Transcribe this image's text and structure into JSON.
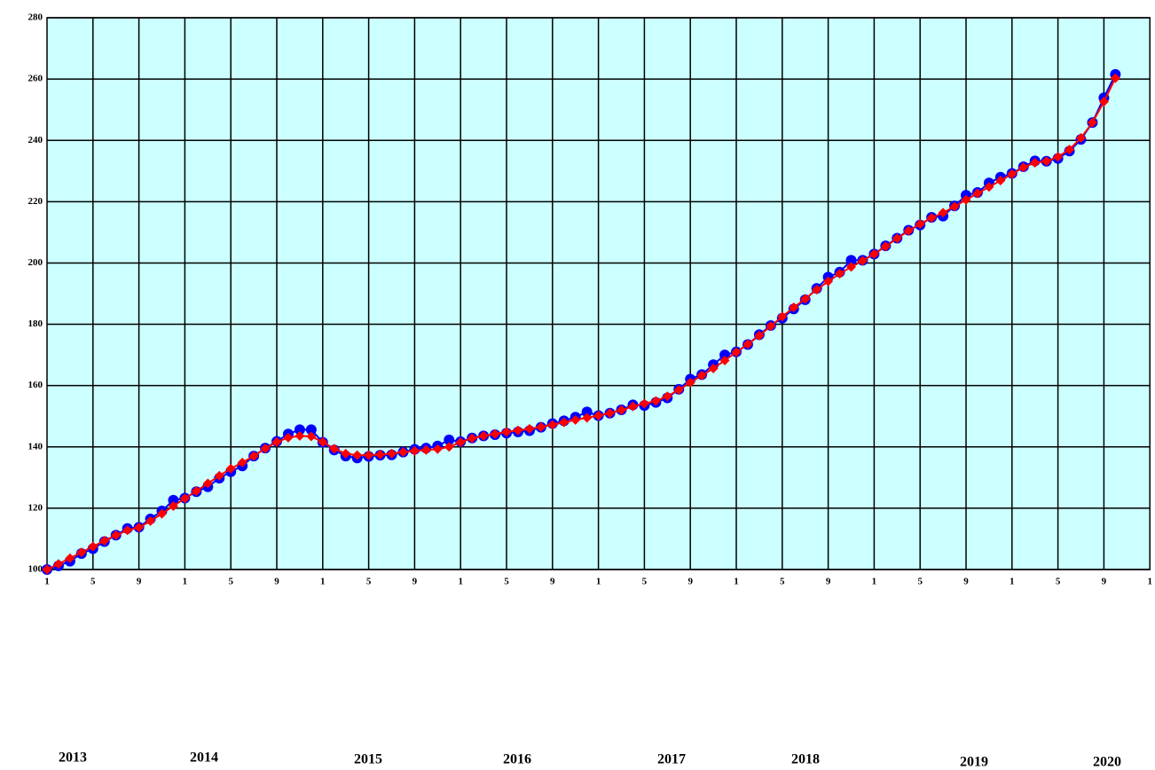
{
  "chart_data": {
    "type": "line",
    "categories": [
      "1",
      null,
      null,
      null,
      "5",
      null,
      null,
      null,
      "9",
      null,
      null,
      null,
      "1",
      null,
      null,
      null,
      "5",
      null,
      null,
      null,
      "9",
      null,
      null,
      null,
      "1",
      null,
      null,
      null,
      "5",
      null,
      null,
      null,
      "9",
      null,
      null,
      null,
      "1",
      null,
      null,
      null,
      "5",
      null,
      null,
      null,
      "9",
      null,
      null,
      null,
      "1",
      null,
      null,
      null,
      "5",
      null,
      null,
      null,
      "9",
      null,
      null,
      null,
      "1",
      null,
      null,
      null,
      "5",
      null,
      null,
      null,
      "9",
      null,
      null,
      null,
      "1",
      null,
      null,
      null,
      "5",
      null,
      null,
      null,
      "9",
      null,
      null,
      null,
      "1",
      null,
      null,
      null,
      "5",
      null,
      null,
      null,
      "9",
      null,
      null,
      null,
      "1"
    ],
    "series": [
      {
        "color": "#0000ff",
        "marker": "circle",
        "values": [
          100,
          101.2,
          102.7,
          105.2,
          106.8,
          109.1,
          111.2,
          113.4,
          113.8,
          116.5,
          119.1,
          122.6,
          123.3,
          125.4,
          127,
          129.8,
          131.9,
          133.8,
          137,
          139.6,
          141.8,
          144.2,
          145.6,
          145.6,
          141.5,
          139,
          137,
          136.4,
          136.9,
          137.3,
          137.4,
          138.3,
          139.2,
          139.6,
          140.3,
          142.3,
          141.7,
          142.9,
          143.6,
          144,
          144.5,
          144.9,
          145.3,
          146.4,
          147.6,
          148.5,
          149.7,
          151.4,
          150.2,
          151,
          152.1,
          153.7,
          153.5,
          154.5,
          156,
          158.8,
          162.1,
          163.6,
          166.8,
          170,
          171,
          173.4,
          176.6,
          179.6,
          182,
          185,
          188,
          191.7,
          195.4,
          197,
          200.9,
          200.9,
          202.9,
          205.6,
          208.1,
          210.7,
          212.4,
          214.9,
          215.3,
          218.6,
          222.1,
          223,
          226.1,
          228,
          229.2,
          231.4,
          233.3,
          233.2,
          234.1,
          236.5,
          240.3,
          245.8,
          253.9,
          261.5,
          null,
          null,
          null
        ]
      },
      {
        "color": "#ff0000",
        "marker": "diamond",
        "values": [
          100,
          101.8,
          103.7,
          105.6,
          107.5,
          109.4,
          111.2,
          112.8,
          113.7,
          115.8,
          118.2,
          120.7,
          123.2,
          125.6,
          128.1,
          130.6,
          132.9,
          134.9,
          137,
          139.5,
          141.6,
          143,
          143.6,
          143.4,
          141.6,
          139.4,
          137.8,
          137.3,
          137.3,
          137.5,
          137.8,
          138.3,
          138.7,
          139,
          139.3,
          140,
          141.5,
          142.8,
          143.6,
          144.2,
          144.9,
          145.4,
          145.9,
          146.5,
          147.2,
          148,
          148.8,
          149.5,
          150.2,
          151,
          152,
          153.2,
          154.1,
          155,
          156.5,
          158.6,
          161,
          163.3,
          165.6,
          168.2,
          170.9,
          173.5,
          176.3,
          179.4,
          182.5,
          185.5,
          188.3,
          191.3,
          194,
          196.5,
          198.7,
          200.7,
          202.9,
          205.4,
          208,
          210.5,
          212.7,
          214.7,
          216.4,
          218.4,
          220.6,
          222.7,
          224.8,
          226.9,
          229,
          231.2,
          232.7,
          233.2,
          234.6,
          237,
          240.8,
          245.8,
          252.6,
          260.3,
          null,
          null,
          null
        ]
      }
    ],
    "ylim": [
      100,
      280
    ],
    "yticks": [
      100,
      120,
      140,
      160,
      180,
      200,
      220,
      240,
      260,
      280
    ],
    "grid": true,
    "plot_background": "#ccffff",
    "year_labels": [
      "2013",
      "2014",
      "2015",
      "2016",
      "2017",
      "2018",
      "2019",
      "2020"
    ]
  }
}
